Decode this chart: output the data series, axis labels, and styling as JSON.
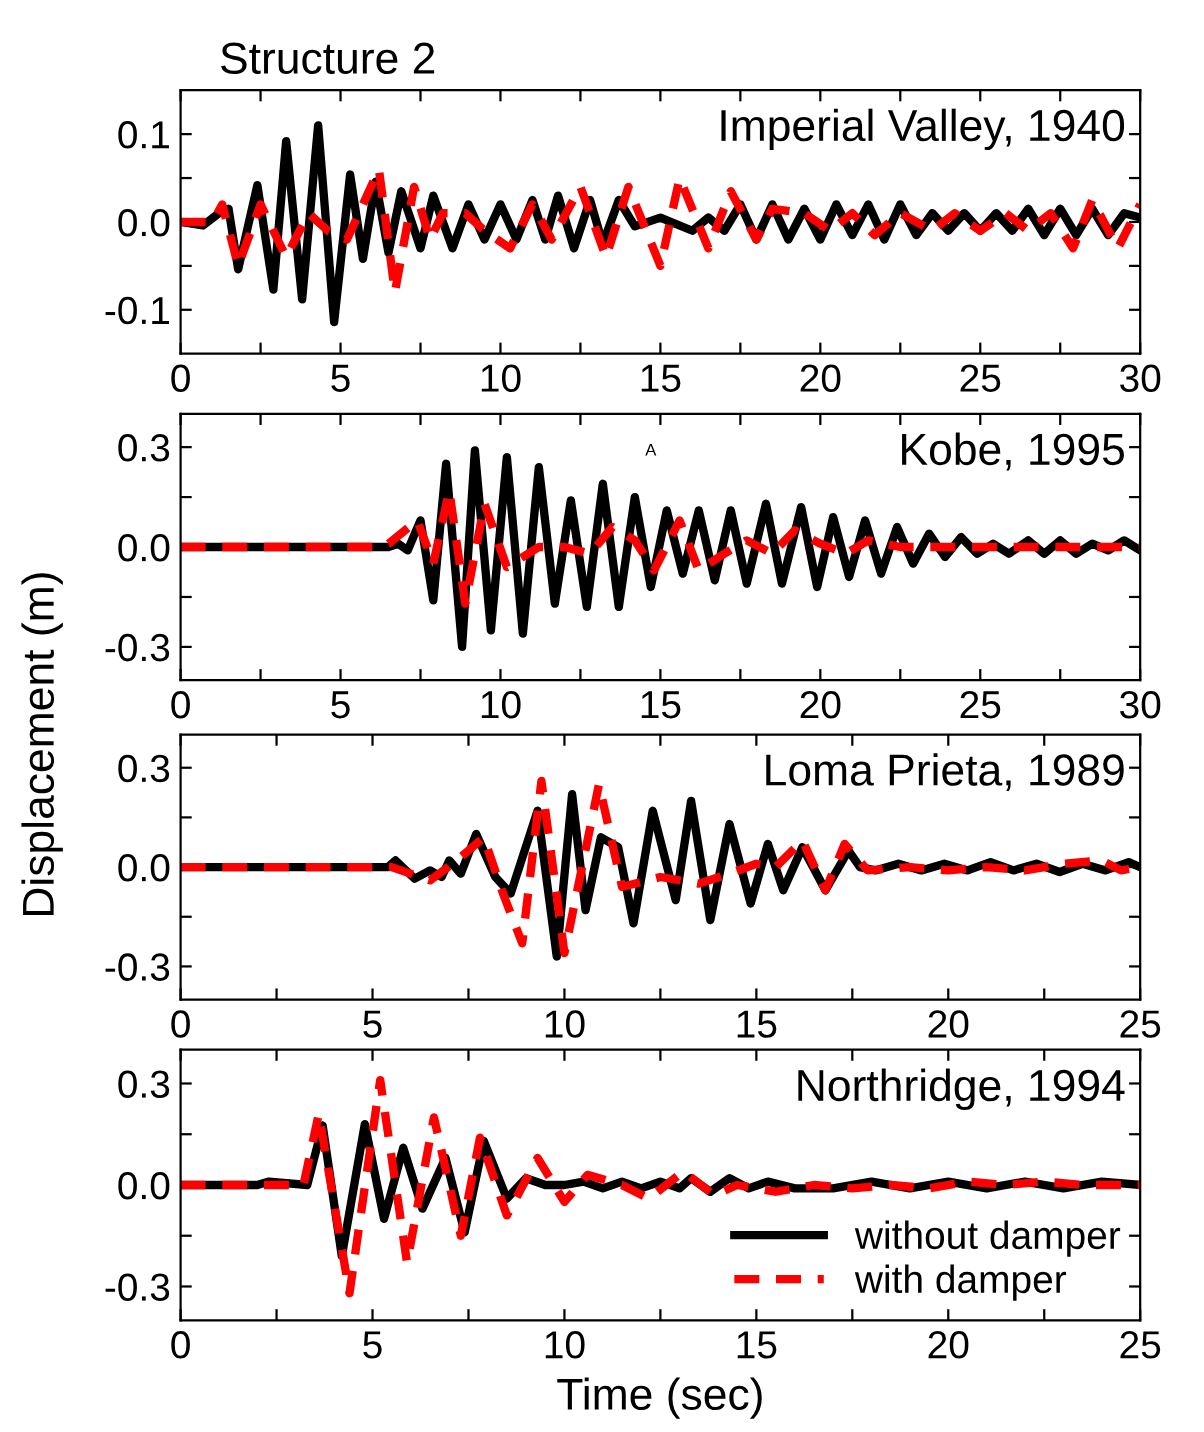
{
  "chart_data": [
    {
      "type": "line",
      "title": "Structure 2",
      "annotations": [
        "Imperial Valley, 1940"
      ],
      "xlim": [
        0,
        30
      ],
      "ylim": [
        -0.15,
        0.15
      ],
      "xticks": [
        0,
        {
          "value": 2.5,
          "label": null
        },
        5,
        {
          "value": 7.5,
          "label": null
        },
        10,
        {
          "value": 12.5,
          "label": null
        },
        15,
        {
          "value": 17.5,
          "label": null
        },
        20,
        {
          "value": 22.5,
          "label": null
        },
        25,
        {
          "value": 27.5,
          "label": null
        },
        30
      ],
      "yticks": [
        {
          "value": -0.1,
          "label": "-0.1"
        },
        {
          "value": -0.05,
          "label": null
        },
        {
          "value": 0,
          "label": "0.0"
        },
        {
          "value": 0.05,
          "label": null
        },
        {
          "value": 0.1,
          "label": "0.1"
        }
      ],
      "grid": false,
      "legend": false,
      "series": [
        {
          "color": "#000000",
          "line_style": "solid",
          "x": [
            0,
            0.7,
            1.2,
            1.5,
            1.8,
            2.4,
            2.9,
            3.3,
            3.8,
            4.3,
            4.8,
            5.3,
            5.7,
            6.1,
            6.5,
            6.9,
            7.5,
            7.9,
            8.5,
            9,
            9.5,
            10,
            10.5,
            11,
            11.4,
            11.8,
            12.3,
            12.8,
            13.2,
            13.7,
            14.2,
            15,
            16,
            16.5,
            17,
            17.5,
            18,
            18.5,
            19,
            19.5,
            20,
            20.5,
            21,
            21.5,
            22,
            22.5,
            23,
            23.5,
            24,
            24.5,
            25,
            25.5,
            26,
            26.5,
            27,
            27.5,
            28,
            28.5,
            29,
            29.5,
            30
          ],
          "values": [
            0,
            -0.004,
            0.01,
            0.015,
            -0.054,
            0.042,
            -0.077,
            0.092,
            -0.088,
            0.11,
            -0.114,
            0.054,
            -0.042,
            0.046,
            -0.035,
            0.035,
            -0.03,
            0.03,
            -0.03,
            0.02,
            -0.02,
            0.02,
            -0.02,
            0.025,
            -0.02,
            0.03,
            -0.03,
            0.025,
            -0.025,
            0.025,
            -0.005,
            0.005,
            -0.01,
            0.005,
            -0.01,
            0.02,
            -0.02,
            0.02,
            -0.02,
            0.015,
            -0.02,
            0.02,
            -0.015,
            0.02,
            -0.02,
            0.02,
            -0.015,
            0.01,
            -0.01,
            0.01,
            -0.01,
            0.01,
            -0.01,
            0.015,
            -0.015,
            0.015,
            -0.015,
            0.015,
            -0.015,
            0.01,
            0.005
          ]
        },
        {
          "color": "#ff0000",
          "line_style": "dashed",
          "x": [
            0,
            1,
            1.3,
            1.8,
            2.5,
            3.3,
            4,
            4.6,
            5.2,
            6.2,
            6.7,
            7.3,
            7.8,
            8.2,
            8.9,
            9.5,
            10.3,
            11,
            11.6,
            12.5,
            13.3,
            14,
            15,
            15.6,
            16.5,
            17.2,
            18,
            18.5,
            19.5,
            20.3,
            21,
            21.7,
            22.5,
            23.5,
            24.2,
            25,
            25.8,
            26.5,
            27.2,
            27.9,
            28.5,
            29.3,
            30
          ],
          "values": [
            0,
            0,
            0.02,
            -0.05,
            0.02,
            -0.04,
            0.01,
            -0.01,
            -0.02,
            0.06,
            -0.08,
            0.04,
            -0.02,
            0.01,
            0.01,
            -0.01,
            -0.03,
            0.02,
            -0.02,
            0.04,
            -0.04,
            0.04,
            -0.05,
            0.05,
            -0.03,
            0.035,
            -0.02,
            0.015,
            0.01,
            -0.01,
            0.01,
            -0.015,
            0.01,
            -0.01,
            0.01,
            -0.01,
            0.01,
            -0.01,
            0.01,
            -0.03,
            0.025,
            -0.03,
            0.02
          ]
        }
      ]
    },
    {
      "type": "line",
      "ylabel": "Displacement (m)",
      "annotations": [
        "Kobe, 1995",
        "A"
      ],
      "xlim": [
        0,
        30
      ],
      "ylim": [
        -0.4,
        0.4
      ],
      "xticks": [
        0,
        {
          "value": 2.5,
          "label": null
        },
        5,
        {
          "value": 7.5,
          "label": null
        },
        10,
        {
          "value": 12.5,
          "label": null
        },
        15,
        {
          "value": 17.5,
          "label": null
        },
        20,
        {
          "value": 22.5,
          "label": null
        },
        25,
        {
          "value": 27.5,
          "label": null
        },
        30
      ],
      "yticks": [
        {
          "value": -0.3,
          "label": "-0.3"
        },
        {
          "value": -0.15,
          "label": null
        },
        {
          "value": 0,
          "label": "0.0"
        },
        {
          "value": 0.15,
          "label": null
        },
        {
          "value": 0.3,
          "label": "0.3"
        }
      ],
      "grid": false,
      "legend": false,
      "series": [
        {
          "color": "#000000",
          "line_style": "solid",
          "x": [
            0,
            6.5,
            6.8,
            7.1,
            7.5,
            7.9,
            8.3,
            8.8,
            9.2,
            9.7,
            10.2,
            10.7,
            11.2,
            11.7,
            12.2,
            12.7,
            13.2,
            13.7,
            14.2,
            14.7,
            15.2,
            15.7,
            16.2,
            16.7,
            17.2,
            17.7,
            18.3,
            18.8,
            19.4,
            19.9,
            20.4,
            20.9,
            21.4,
            21.9,
            22.4,
            22.9,
            23.4,
            23.9,
            24.4,
            24.9,
            25.4,
            25.9,
            26.5,
            27,
            27.5,
            28,
            28.5,
            29,
            29.5,
            30
          ],
          "values": [
            0,
            0,
            0.01,
            -0.01,
            0.08,
            -0.16,
            0.25,
            -0.3,
            0.29,
            -0.25,
            0.27,
            -0.26,
            0.24,
            -0.17,
            0.14,
            -0.18,
            0.19,
            -0.18,
            0.15,
            -0.12,
            0.11,
            -0.08,
            0.11,
            -0.1,
            0.11,
            -0.11,
            0.13,
            -0.11,
            0.12,
            -0.12,
            0.09,
            -0.09,
            0.08,
            -0.08,
            0.06,
            -0.05,
            0.04,
            -0.03,
            0.03,
            -0.02,
            0.01,
            -0.02,
            0.02,
            -0.02,
            0.02,
            -0.02,
            0.01,
            -0.01,
            0.02,
            -0.01
          ]
        },
        {
          "color": "#ff0000",
          "line_style": "dashed",
          "x": [
            0,
            6.2,
            6.5,
            7.4,
            7.9,
            8.4,
            8.9,
            9.5,
            10.2,
            11.2,
            12,
            12.8,
            13.5,
            14.2,
            14.8,
            15.6,
            16.2,
            17,
            17.7,
            18.5,
            19.2,
            20,
            20.8,
            21.5,
            22.5,
            23.5,
            25,
            27,
            30
          ],
          "values": [
            0,
            0,
            0.01,
            0.08,
            -0.05,
            0.17,
            -0.17,
            0.13,
            -0.06,
            0,
            0,
            -0.02,
            0.06,
            0.02,
            -0.07,
            0.08,
            -0.07,
            -0.02,
            0.02,
            -0.02,
            0.05,
            0.01,
            -0.02,
            0.02,
            0,
            0,
            0,
            0,
            0
          ]
        }
      ]
    },
    {
      "type": "line",
      "annotations": [
        "Loma Prieta, 1989"
      ],
      "xlim": [
        0,
        25
      ],
      "ylim": [
        -0.4,
        0.4
      ],
      "xticks": [
        0,
        {
          "value": 2.5,
          "label": null
        },
        5,
        {
          "value": 7.5,
          "label": null
        },
        10,
        {
          "value": 12.5,
          "label": null
        },
        15,
        {
          "value": 17.5,
          "label": null
        },
        20,
        {
          "value": 22.5,
          "label": null
        },
        25
      ],
      "yticks": [
        {
          "value": -0.3,
          "label": "-0.3"
        },
        {
          "value": -0.15,
          "label": null
        },
        {
          "value": 0,
          "label": "0.0"
        },
        {
          "value": 0.15,
          "label": null
        },
        {
          "value": 0.3,
          "label": "0.3"
        }
      ],
      "grid": false,
      "legend": false,
      "series": [
        {
          "color": "#000000",
          "line_style": "solid",
          "x": [
            0,
            5.4,
            5.6,
            6.1,
            6.5,
            6.8,
            7.0,
            7.3,
            7.7,
            8.2,
            8.6,
            9.3,
            9.8,
            10.2,
            10.55,
            10.95,
            11.4,
            11.8,
            12.3,
            12.9,
            13.3,
            13.8,
            14.3,
            14.85,
            15.3,
            15.7,
            16.2,
            16.8,
            17.4,
            17.7,
            18.1,
            18.7,
            19.3,
            19.9,
            20.5,
            21.1,
            21.7,
            22.3,
            22.9,
            23.5,
            24.1,
            24.7,
            25
          ],
          "values": [
            0,
            0,
            0.02,
            -0.035,
            -0.01,
            -0.03,
            0.02,
            -0.02,
            0.1,
            -0.03,
            -0.08,
            0.17,
            -0.27,
            0.22,
            -0.13,
            0.09,
            0.06,
            -0.17,
            0.17,
            -0.1,
            0.2,
            -0.16,
            0.13,
            -0.11,
            0.07,
            -0.07,
            0.06,
            -0.07,
            0.05,
            0,
            -0.01,
            0.01,
            -0.01,
            0.01,
            -0.01,
            0.015,
            -0.01,
            0.01,
            -0.015,
            0.01,
            -0.01,
            0.015,
            0
          ]
        },
        {
          "color": "#ff0000",
          "line_style": "dashed",
          "x": [
            0,
            5.5,
            6.5,
            7.2,
            7.9,
            8.4,
            8.9,
            9.4,
            10,
            10.9,
            11.5,
            12.5,
            13.5,
            14.3,
            15,
            15.5,
            16.2,
            16.8,
            17.3,
            17.9,
            19,
            20,
            21,
            22,
            23,
            24,
            24.5,
            25
          ],
          "values": [
            0,
            0,
            -0.04,
            0.02,
            0.09,
            -0.08,
            -0.23,
            0.26,
            -0.26,
            0.25,
            -0.06,
            -0.03,
            -0.05,
            -0.02,
            0.01,
            0,
            0.08,
            -0.07,
            0.07,
            -0.01,
            0,
            -0.01,
            0,
            -0.01,
            0.01,
            0.02,
            -0.01,
            0
          ]
        }
      ]
    },
    {
      "type": "line",
      "xlabel": "Time (sec)",
      "annotations": [
        "Northridge, 1994"
      ],
      "xlim": [
        0,
        25
      ],
      "ylim": [
        -0.4,
        0.4
      ],
      "xticks": [
        0,
        {
          "value": 2.5,
          "label": null
        },
        5,
        {
          "value": 7.5,
          "label": null
        },
        10,
        {
          "value": 12.5,
          "label": null
        },
        15,
        {
          "value": 17.5,
          "label": null
        },
        20,
        {
          "value": 22.5,
          "label": null
        },
        25
      ],
      "yticks": [
        {
          "value": -0.3,
          "label": "-0.3"
        },
        {
          "value": -0.15,
          "label": null
        },
        {
          "value": 0,
          "label": "0.0"
        },
        {
          "value": 0.15,
          "label": null
        },
        {
          "value": 0.3,
          "label": "0.3"
        }
      ],
      "grid": false,
      "legend": "bottom right",
      "series": [
        {
          "name": "without damper",
          "color": "#000000",
          "line_style": "solid",
          "x": [
            0,
            2,
            2.3,
            3.3,
            3.7,
            4.2,
            4.8,
            5.3,
            5.8,
            6.3,
            6.9,
            7.4,
            7.9,
            8.5,
            9,
            9.5,
            10,
            10.5,
            11,
            11.5,
            12,
            12.5,
            13,
            13.3,
            13.8,
            14.3,
            14.8,
            15.3,
            16,
            17,
            18,
            19,
            20,
            21,
            22,
            23,
            24,
            25
          ],
          "values": [
            0,
            0,
            0.01,
            0,
            0.176,
            -0.21,
            0.18,
            -0.1,
            0.11,
            -0.07,
            0.08,
            -0.14,
            0.13,
            -0.04,
            0.02,
            0,
            0,
            0.01,
            -0.01,
            0.01,
            -0.01,
            0.01,
            -0.01,
            0.02,
            -0.02,
            0.02,
            -0.01,
            0.01,
            -0.01,
            -0.01,
            0.01,
            -0.01,
            0.01,
            -0.01,
            0.01,
            -0.01,
            0.01,
            0
          ]
        },
        {
          "name": "with damper",
          "color": "#ff0000",
          "line_style": "dashed",
          "x": [
            0,
            3.2,
            3.6,
            4.4,
            5.2,
            5.9,
            6.6,
            7.3,
            7.8,
            8.5,
            9.3,
            10,
            10.6,
            11.5,
            12.2,
            13.1,
            13.9,
            14.5,
            15.5,
            16.5,
            17.5,
            18.5,
            19.5,
            20.5,
            21.5,
            22.5,
            23.5,
            25
          ],
          "values": [
            0,
            0,
            0.21,
            -0.32,
            0.31,
            -0.23,
            0.2,
            -0.15,
            0.14,
            -0.09,
            0.08,
            -0.05,
            0.03,
            0,
            -0.04,
            0.04,
            -0.03,
            0,
            -0.02,
            0,
            -0.01,
            0,
            -0.01,
            0.01,
            0,
            0.01,
            0,
            0
          ]
        }
      ]
    }
  ]
}
